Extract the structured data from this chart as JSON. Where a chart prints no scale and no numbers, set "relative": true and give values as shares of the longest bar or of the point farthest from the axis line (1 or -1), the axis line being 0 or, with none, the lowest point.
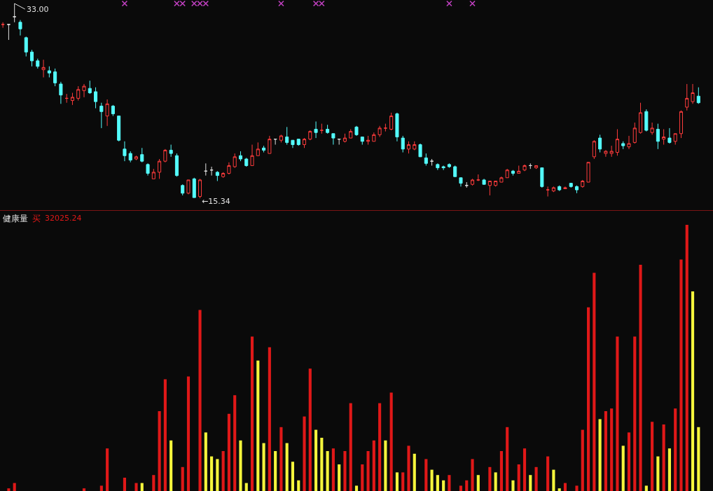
{
  "chart_data": [
    {
      "type": "candlestick",
      "categories": [
        null,
        null,
        null,
        null,
        null,
        null,
        null,
        null,
        null,
        null,
        null,
        null,
        null,
        null,
        null,
        null,
        null,
        null,
        null,
        null,
        null,
        null,
        null,
        null,
        null,
        null,
        null,
        null,
        null,
        null,
        null,
        null,
        null,
        null,
        null,
        null,
        null,
        null,
        null,
        null,
        null,
        null,
        null,
        null,
        null,
        null,
        null,
        null,
        null,
        null,
        null,
        null,
        null,
        null,
        null,
        null,
        null,
        null,
        null,
        null,
        null,
        null,
        null,
        null,
        null,
        null,
        null,
        null,
        null,
        null,
        null,
        null,
        null,
        null,
        null,
        null,
        null,
        null,
        null,
        null,
        null,
        null,
        null,
        null,
        null,
        null,
        null,
        null,
        null,
        null,
        null,
        null,
        null,
        null,
        null,
        null,
        null,
        null,
        null,
        null,
        null,
        null,
        null,
        null,
        null,
        null,
        null,
        null,
        null,
        null,
        null,
        null,
        null,
        null,
        null,
        null,
        null,
        null,
        null,
        null,
        null
      ],
      "ohlc": [
        [
          31.1,
          31.3,
          30.8,
          31.1
        ],
        [
          31.1,
          31.1,
          29.7,
          31.1
        ],
        [
          31.8,
          33.0,
          31.3,
          31.8
        ],
        [
          31.3,
          31.5,
          30.1,
          30.7
        ],
        [
          29.9,
          30.0,
          28.2,
          28.6
        ],
        [
          28.6,
          28.8,
          27.3,
          27.8
        ],
        [
          27.8,
          28.0,
          27.1,
          27.3
        ],
        [
          27.0,
          27.9,
          26.3,
          27.2
        ],
        [
          26.9,
          27.3,
          26.3,
          26.7
        ],
        [
          26.8,
          27.1,
          25.5,
          25.8
        ],
        [
          25.7,
          25.9,
          23.9,
          24.7
        ],
        [
          24.4,
          24.8,
          24.0,
          24.4
        ],
        [
          24.2,
          24.9,
          23.8,
          24.5
        ],
        [
          24.4,
          25.5,
          24.2,
          25.2
        ],
        [
          25.1,
          25.7,
          24.5,
          25.5
        ],
        [
          25.3,
          26.0,
          24.8,
          24.9
        ],
        [
          25.0,
          25.4,
          23.5,
          24.1
        ],
        [
          23.7,
          24.0,
          21.7,
          23.2
        ],
        [
          22.8,
          24.3,
          21.9,
          23.9
        ],
        [
          23.7,
          23.8,
          22.8,
          23.0
        ],
        [
          22.8,
          22.8,
          20.5,
          20.6
        ],
        [
          19.8,
          20.5,
          18.7,
          19.2
        ],
        [
          19.4,
          19.6,
          18.6,
          18.8
        ],
        [
          18.9,
          19.2,
          18.8,
          19.1
        ],
        [
          19.3,
          19.9,
          18.6,
          18.7
        ],
        [
          18.4,
          18.5,
          17.4,
          17.6
        ],
        [
          17.1,
          18.0,
          17.1,
          17.7
        ],
        [
          17.7,
          18.9,
          17.1,
          18.7
        ],
        [
          18.7,
          19.8,
          18.6,
          19.7
        ],
        [
          19.7,
          20.2,
          19.1,
          19.4
        ],
        [
          19.2,
          19.4,
          17.3,
          17.4
        ],
        [
          16.5,
          16.6,
          15.6,
          15.8
        ],
        [
          15.8,
          17.0,
          15.7,
          17.0
        ],
        [
          17.1,
          17.2,
          15.4,
          15.4
        ],
        [
          15.5,
          17.1,
          15.34,
          17.0
        ],
        [
          17.8,
          18.5,
          17.4,
          17.8
        ],
        [
          17.9,
          18.2,
          17.4,
          17.9
        ],
        [
          17.7,
          17.8,
          16.9,
          17.4
        ],
        [
          17.3,
          17.7,
          17.2,
          17.6
        ],
        [
          17.6,
          18.6,
          17.5,
          18.3
        ],
        [
          18.2,
          19.4,
          18.1,
          19.1
        ],
        [
          19.2,
          19.6,
          18.7,
          18.9
        ],
        [
          18.9,
          19.0,
          18.2,
          18.3
        ],
        [
          18.3,
          20.2,
          18.3,
          19.2
        ],
        [
          19.2,
          20.4,
          19.2,
          19.8
        ],
        [
          19.9,
          20.1,
          19.5,
          19.7
        ],
        [
          19.4,
          21.0,
          19.4,
          20.7
        ],
        [
          20.7,
          20.7,
          20.2,
          20.7
        ],
        [
          20.6,
          21.1,
          20.4,
          21.0
        ],
        [
          20.9,
          21.8,
          20.2,
          20.4
        ],
        [
          20.6,
          20.6,
          19.9,
          20.2
        ],
        [
          20.7,
          20.7,
          20.1,
          20.2
        ],
        [
          20.2,
          20.8,
          19.9,
          20.7
        ],
        [
          20.7,
          21.5,
          20.6,
          21.4
        ],
        [
          21.6,
          22.3,
          20.8,
          21.3
        ],
        [
          21.5,
          22.1,
          21.2,
          21.5
        ],
        [
          21.6,
          22.0,
          21.2,
          21.3
        ],
        [
          21.2,
          21.2,
          20.2,
          20.8
        ],
        [
          20.7,
          20.7,
          20.2,
          20.7
        ],
        [
          20.5,
          21.2,
          20.4,
          20.8
        ],
        [
          20.8,
          21.6,
          20.8,
          21.4
        ],
        [
          21.8,
          21.9,
          21.0,
          21.1
        ],
        [
          20.9,
          20.9,
          20.2,
          20.5
        ],
        [
          20.5,
          21.0,
          20.2,
          20.6
        ],
        [
          20.5,
          21.3,
          20.5,
          21.1
        ],
        [
          21.1,
          21.9,
          20.9,
          21.7
        ],
        [
          21.7,
          22.1,
          21.4,
          21.7
        ],
        [
          21.6,
          23.1,
          21.5,
          22.8
        ],
        [
          23.0,
          23.1,
          20.5,
          20.9
        ],
        [
          20.8,
          21.0,
          19.5,
          19.8
        ],
        [
          19.8,
          20.5,
          19.4,
          20.2
        ],
        [
          19.8,
          20.5,
          19.7,
          20.2
        ],
        [
          20.2,
          20.3,
          19.1,
          19.1
        ],
        [
          19.0,
          19.4,
          18.3,
          18.5
        ],
        [
          18.7,
          18.9,
          18.3,
          18.7
        ],
        [
          18.4,
          18.5,
          17.9,
          18.1
        ],
        [
          18.2,
          18.3,
          17.9,
          18.1
        ],
        [
          18.4,
          18.5,
          18.1,
          18.2
        ],
        [
          18.2,
          18.3,
          17.3,
          17.3
        ],
        [
          17.2,
          17.2,
          16.4,
          16.7
        ],
        [
          16.5,
          16.8,
          16.3,
          16.5
        ],
        [
          16.6,
          17.1,
          16.5,
          17.0
        ],
        [
          17.0,
          17.5,
          16.9,
          17.0
        ],
        [
          17.0,
          17.1,
          16.6,
          16.6
        ],
        [
          16.5,
          16.9,
          15.6,
          16.9
        ],
        [
          16.5,
          16.9,
          16.4,
          16.9
        ],
        [
          16.8,
          17.3,
          16.8,
          17.2
        ],
        [
          17.2,
          18.0,
          17.2,
          17.9
        ],
        [
          17.8,
          17.9,
          17.4,
          17.6
        ],
        [
          17.6,
          18.3,
          17.6,
          17.8
        ],
        [
          17.9,
          18.4,
          17.8,
          18.3
        ],
        [
          18.3,
          18.5,
          18.0,
          18.3
        ],
        [
          18.1,
          18.3,
          18.0,
          18.3
        ],
        [
          18.1,
          18.1,
          16.3,
          16.4
        ],
        [
          16.1,
          16.4,
          15.5,
          16.1
        ],
        [
          16.0,
          16.4,
          15.9,
          16.3
        ],
        [
          16.4,
          16.5,
          16.0,
          16.1
        ],
        [
          16.2,
          16.4,
          16.2,
          16.3
        ],
        [
          16.7,
          16.7,
          16.3,
          16.4
        ],
        [
          16.4,
          16.5,
          15.8,
          16.1
        ],
        [
          16.4,
          17.0,
          16.3,
          16.9
        ],
        [
          16.8,
          18.6,
          16.8,
          18.6
        ],
        [
          19.1,
          20.6,
          18.9,
          20.5
        ],
        [
          20.8,
          21.1,
          19.5,
          19.8
        ],
        [
          19.4,
          19.7,
          19.1,
          19.6
        ],
        [
          19.4,
          20.1,
          19.1,
          19.6
        ],
        [
          19.5,
          21.6,
          19.2,
          20.7
        ],
        [
          20.3,
          20.5,
          19.8,
          20.1
        ],
        [
          20.0,
          21.0,
          19.8,
          20.3
        ],
        [
          20.4,
          22.2,
          20.3,
          21.7
        ],
        [
          21.3,
          24.0,
          21.2,
          23.1
        ],
        [
          23.2,
          23.4,
          21.4,
          21.5
        ],
        [
          21.3,
          22.2,
          21.1,
          21.7
        ],
        [
          21.6,
          22.1,
          19.8,
          20.5
        ],
        [
          20.7,
          21.6,
          20.2,
          20.9
        ],
        [
          20.8,
          21.7,
          20.3,
          20.4
        ],
        [
          20.5,
          21.2,
          20.2,
          21.2
        ],
        [
          21.2,
          23.3,
          20.8,
          23.2
        ],
        [
          23.6,
          25.7,
          23.3,
          24.4
        ],
        [
          24.1,
          25.7,
          23.9,
          24.9
        ],
        [
          24.6,
          25.4,
          23.9,
          24.0
        ]
      ],
      "colors": [
        "#ff3c3c",
        "#e0e0e0",
        "#e0e0e0",
        "#54fcfc",
        "#54fcfc",
        "#54fcfc",
        "#54fcfc",
        "#ff3c3c",
        "#54fcfc",
        "#54fcfc",
        "#54fcfc",
        "#ff3c3c",
        "#ff3c3c",
        "#ff3c3c",
        "#ff3c3c",
        "#54fcfc",
        "#54fcfc",
        "#54fcfc",
        "#ff3c3c",
        "#54fcfc",
        "#54fcfc",
        "#54fcfc",
        "#54fcfc",
        "#ff3c3c",
        "#54fcfc",
        "#54fcfc",
        "#ff3c3c",
        "#ff3c3c",
        "#ff3c3c",
        "#54fcfc",
        "#54fcfc",
        "#54fcfc",
        "#ff3c3c",
        "#54fcfc",
        "#ff3c3c",
        "#e0e0e0",
        "#e0e0e0",
        "#54fcfc",
        "#ff3c3c",
        "#ff3c3c",
        "#ff3c3c",
        "#54fcfc",
        "#54fcfc",
        "#ff3c3c",
        "#ff3c3c",
        "#54fcfc",
        "#ff3c3c",
        "#e0e0e0",
        "#ff3c3c",
        "#54fcfc",
        "#54fcfc",
        "#54fcfc",
        "#ff3c3c",
        "#ff3c3c",
        "#54fcfc",
        "#ff3c3c",
        "#54fcfc",
        "#54fcfc",
        "#e0e0e0",
        "#ff3c3c",
        "#ff3c3c",
        "#54fcfc",
        "#54fcfc",
        "#ff3c3c",
        "#ff3c3c",
        "#ff3c3c",
        "#ff3c3c",
        "#ff3c3c",
        "#54fcfc",
        "#54fcfc",
        "#ff3c3c",
        "#ff3c3c",
        "#54fcfc",
        "#54fcfc",
        "#e0e0e0",
        "#54fcfc",
        "#54fcfc",
        "#54fcfc",
        "#54fcfc",
        "#54fcfc",
        "#e0e0e0",
        "#ff3c3c",
        "#ff3c3c",
        "#54fcfc",
        "#ff3c3c",
        "#ff3c3c",
        "#ff3c3c",
        "#ff3c3c",
        "#54fcfc",
        "#ff3c3c",
        "#ff3c3c",
        "#e0e0e0",
        "#ff3c3c",
        "#54fcfc",
        "#ff3c3c",
        "#ff3c3c",
        "#54fcfc",
        "#ff3c3c",
        "#54fcfc",
        "#54fcfc",
        "#ff3c3c",
        "#ff3c3c",
        "#ff3c3c",
        "#54fcfc",
        "#ff3c3c",
        "#ff3c3c",
        "#ff3c3c",
        "#54fcfc",
        "#ff3c3c",
        "#ff3c3c",
        "#ff3c3c",
        "#54fcfc",
        "#ff3c3c",
        "#54fcfc",
        "#ff3c3c",
        "#54fcfc",
        "#ff3c3c",
        "#ff3c3c",
        "#ff3c3c",
        "#ff3c3c",
        "#54fcfc"
      ],
      "series": [
        {
          "type": "scatter",
          "color": "#c040c0",
          "values": [
            null,
            null,
            null,
            null,
            null,
            null,
            null,
            null,
            null,
            null,
            null,
            null,
            null,
            null,
            null,
            null,
            null,
            null,
            null,
            null,
            null,
            33.0,
            null,
            null,
            null,
            null,
            null,
            null,
            null,
            null,
            33.0,
            33.0,
            null,
            33.0,
            33.0,
            33.0,
            null,
            null,
            null,
            null,
            null,
            null,
            null,
            null,
            null,
            null,
            null,
            null,
            33.0,
            null,
            null,
            null,
            null,
            null,
            33.0,
            33.0,
            null,
            null,
            null,
            null,
            null,
            null,
            null,
            null,
            null,
            null,
            null,
            null,
            null,
            null,
            null,
            null,
            null,
            null,
            null,
            null,
            null,
            33.0,
            null,
            null,
            null,
            33.0,
            null,
            null,
            null,
            null,
            null,
            null,
            null,
            null,
            null,
            null,
            null,
            null,
            null,
            null,
            null,
            null,
            null,
            null,
            null,
            null,
            null,
            null,
            null,
            null,
            null,
            null,
            null,
            null,
            null,
            null,
            null,
            null,
            null,
            null,
            null,
            null,
            null,
            null,
            null
          ]
        }
      ],
      "marker": "cross",
      "annotations": [
        "33.00",
        "←15.34"
      ],
      "tick_labels": false
    },
    {
      "type": "bar",
      "title": "健康量",
      "relative": true,
      "categories": [
        null,
        null,
        null,
        null,
        null,
        null,
        null,
        null,
        null,
        null,
        null,
        null,
        null,
        null,
        null,
        null,
        null,
        null,
        null,
        null,
        null,
        null,
        null,
        null,
        null,
        null,
        null,
        null,
        null,
        null,
        null,
        null,
        null,
        null,
        null,
        null,
        null,
        null,
        null,
        null,
        null,
        null,
        null,
        null,
        null,
        null,
        null,
        null,
        null,
        null,
        null,
        null,
        null,
        null,
        null,
        null,
        null,
        null,
        null,
        null,
        null,
        null,
        null,
        null,
        null,
        null,
        null,
        null,
        null,
        null,
        null,
        null,
        null,
        null,
        null,
        null,
        null,
        null,
        null,
        null,
        null,
        null,
        null,
        null,
        null,
        null,
        null,
        null,
        null,
        null,
        null,
        null,
        null,
        null,
        null,
        null,
        null,
        null,
        null,
        null,
        null,
        null,
        null,
        null,
        null,
        null,
        null,
        null,
        null,
        null,
        null,
        null,
        null,
        null,
        null,
        null,
        null,
        null,
        null,
        null,
        null
      ],
      "series": [
        {
          "name": "买",
          "color": "#e01818",
          "values": [
            null,
            0.01,
            0.03,
            null,
            null,
            null,
            null,
            null,
            null,
            null,
            null,
            null,
            null,
            null,
            0.01,
            null,
            null,
            0.02,
            0.16,
            null,
            null,
            0.05,
            null,
            0.03,
            null,
            null,
            0.06,
            0.3,
            0.42,
            null,
            null,
            0.09,
            0.43,
            null,
            0.68,
            null,
            null,
            null,
            0.15,
            0.29,
            0.36,
            null,
            null,
            0.58,
            null,
            null,
            0.54,
            null,
            0.24,
            null,
            null,
            null,
            0.28,
            0.46,
            null,
            null,
            null,
            0.16,
            null,
            0.15,
            0.33,
            null,
            0.1,
            0.15,
            0.19,
            0.33,
            null,
            0.37,
            null,
            0.07,
            0.17,
            null,
            null,
            0.12,
            null,
            null,
            null,
            0.06,
            null,
            0.02,
            0.04,
            0.12,
            null,
            null,
            0.09,
            null,
            0.15,
            0.24,
            null,
            0.1,
            0.16,
            null,
            0.09,
            null,
            0.13,
            null,
            null,
            0.03,
            null,
            0.02,
            0.23,
            0.69,
            0.82,
            null,
            0.3,
            0.31,
            0.58,
            null,
            0.22,
            0.58,
            0.85,
            null,
            0.26,
            null,
            0.25,
            null,
            0.31,
            0.87,
            1,
            null,
            null
          ]
        },
        {
          "color": "#f5f53c",
          "values": [
            null,
            null,
            null,
            null,
            null,
            null,
            null,
            null,
            null,
            null,
            null,
            null,
            null,
            null,
            null,
            null,
            null,
            null,
            null,
            null,
            null,
            null,
            null,
            null,
            0.03,
            null,
            null,
            null,
            null,
            0.19,
            null,
            null,
            null,
            null,
            null,
            0.22,
            0.13,
            0.12,
            null,
            null,
            null,
            0.19,
            0.03,
            null,
            0.49,
            0.18,
            null,
            0.15,
            null,
            0.18,
            0.11,
            0.04,
            null,
            null,
            0.23,
            0.2,
            0.15,
            null,
            0.1,
            null,
            null,
            0.02,
            null,
            null,
            null,
            null,
            0.19,
            null,
            0.07,
            null,
            null,
            0.14,
            null,
            null,
            0.08,
            0.06,
            0.04,
            null,
            null,
            null,
            null,
            null,
            0.06,
            null,
            null,
            0.07,
            null,
            null,
            0.04,
            null,
            null,
            0.06,
            null,
            null,
            null,
            0.08,
            0.01,
            null,
            null,
            null,
            null,
            null,
            null,
            0.27,
            null,
            null,
            null,
            0.17,
            null,
            null,
            null,
            0.02,
            null,
            0.13,
            null,
            0.16,
            null,
            null,
            null,
            0.75,
            0.24
          ]
        }
      ],
      "annotations": [
        "32025.24"
      ],
      "tick_labels": false
    }
  ]
}
